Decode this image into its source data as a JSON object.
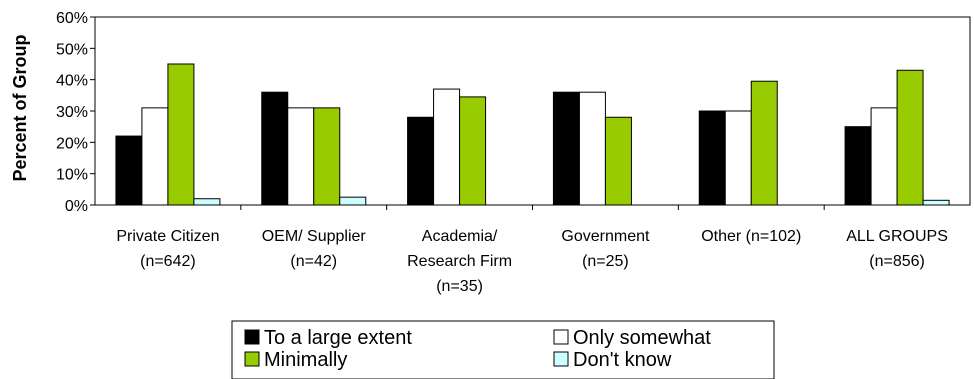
{
  "chart_data": {
    "type": "bar",
    "title": "",
    "xlabel": "",
    "ylabel": "Percent of Group",
    "ylim": [
      0,
      60
    ],
    "y_ticks": [
      "0%",
      "10%",
      "20%",
      "30%",
      "40%",
      "50%",
      "60%"
    ],
    "grid": false,
    "legend_position": "bottom",
    "categories": [
      [
        "Private Citizen",
        "(n=642)"
      ],
      [
        "OEM/ Supplier",
        "(n=42)"
      ],
      [
        "Academia/",
        "Research Firm",
        "(n=35)"
      ],
      [
        "Government",
        "(n=25)"
      ],
      [
        "Other (n=102)"
      ],
      [
        "ALL GROUPS",
        "(n=856)"
      ]
    ],
    "series": [
      {
        "name": "To a large extent",
        "color": "#000000",
        "values": [
          22,
          36,
          28,
          36,
          30,
          25
        ]
      },
      {
        "name": "Only somewhat",
        "color": "#ffffff",
        "values": [
          31,
          31,
          37,
          36,
          30,
          31
        ]
      },
      {
        "name": "Minimally",
        "color": "#99cc00",
        "values": [
          45,
          31,
          34.5,
          28,
          39.5,
          43
        ]
      },
      {
        "name": "Don't know",
        "color": "#ccffff",
        "values": [
          2,
          2.5,
          0,
          0,
          0,
          1.5
        ]
      }
    ]
  }
}
